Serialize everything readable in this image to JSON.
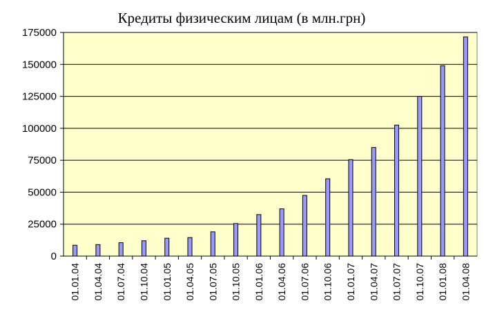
{
  "chart_data": {
    "type": "bar",
    "title": "Кредиты физическим лицам (в млн.грн)",
    "xlabel": "",
    "ylabel": "",
    "categories": [
      "01.01.04",
      "01.04.04",
      "01.07.04",
      "01.10.04",
      "01.01.05",
      "01.04.05",
      "01.07.05",
      "01.10.05",
      "01.01.06",
      "01.04.06",
      "01.07.06",
      "01.10.06",
      "01.01.07",
      "01.04.07",
      "01.07.07",
      "01.10.07",
      "01.01.08",
      "01.04.08"
    ],
    "values": [
      8500,
      9000,
      10500,
      12000,
      14000,
      14500,
      19000,
      25500,
      32500,
      37000,
      47500,
      60500,
      75500,
      85000,
      102500,
      125000,
      149000,
      171500
    ],
    "ylim": [
      0,
      175000
    ],
    "yticks": [
      0,
      25000,
      50000,
      75000,
      100000,
      125000,
      150000,
      175000
    ],
    "grid": true,
    "legend": "none",
    "colors": {
      "plot_background": "#ffffcc",
      "bar_fill": "#9999ff",
      "bar_stroke": "#000000",
      "gridline": "#000000"
    }
  }
}
